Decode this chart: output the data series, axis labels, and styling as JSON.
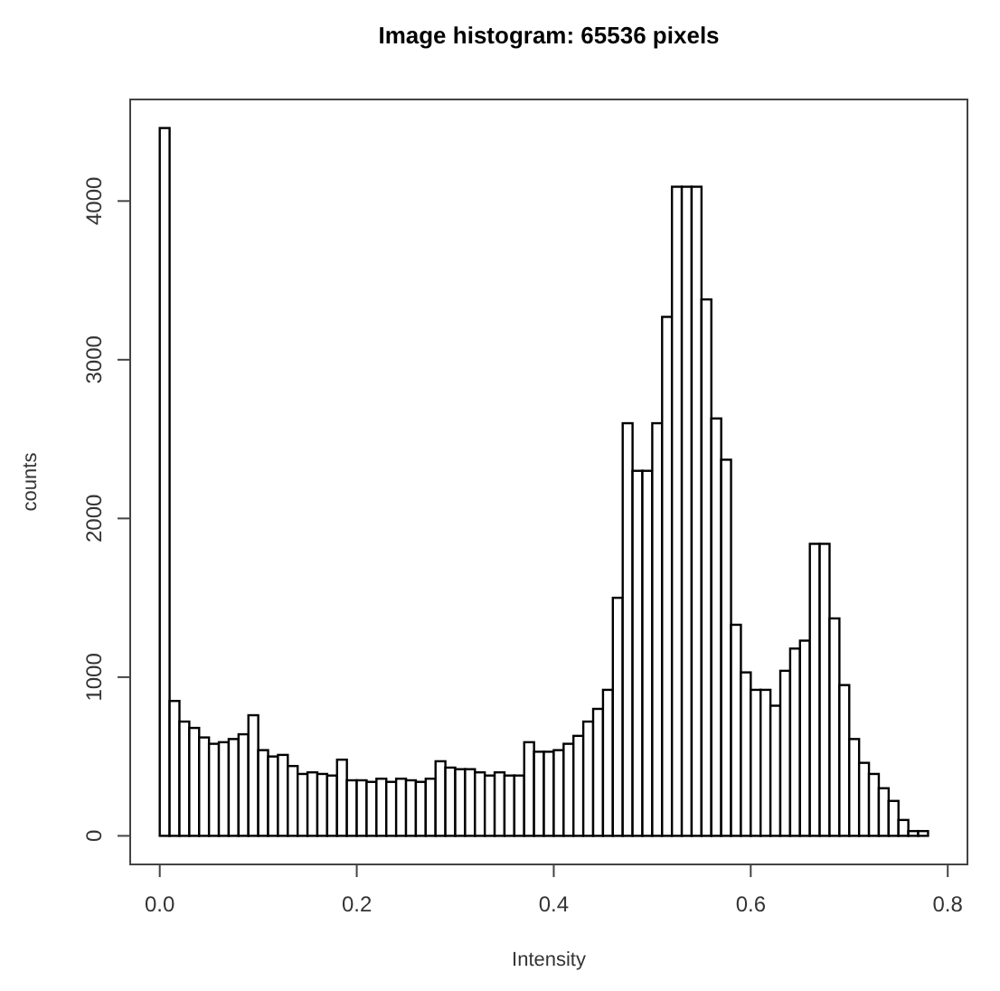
{
  "chart_data": {
    "type": "histogram",
    "title": "Image histogram: 65536 pixels",
    "xlabel": "Intensity",
    "ylabel": "counts",
    "color": "#000000",
    "bins": [
      0,
      0.01,
      0.02,
      0.03,
      0.04,
      0.05,
      0.06,
      0.07,
      0.08,
      0.09,
      0.1,
      0.11,
      0.12,
      0.13,
      0.14,
      0.15,
      0.16,
      0.17,
      0.18,
      0.19,
      0.2,
      0.21,
      0.22,
      0.23,
      0.24,
      0.25,
      0.26,
      0.27,
      0.28,
      0.29,
      0.3,
      0.31,
      0.32,
      0.33,
      0.34,
      0.35,
      0.36,
      0.37,
      0.38,
      0.39,
      0.4,
      0.41,
      0.42,
      0.43,
      0.44,
      0.45,
      0.46,
      0.47,
      0.48,
      0.49,
      0.5,
      0.51,
      0.52,
      0.53,
      0.54,
      0.55,
      0.56,
      0.57,
      0.58,
      0.59,
      0.6,
      0.61,
      0.62,
      0.63,
      0.64,
      0.65,
      0.66,
      0.67,
      0.68,
      0.69,
      0.7,
      0.71,
      0.72,
      0.73,
      0.74,
      0.75,
      0.76,
      0.77,
      0.78
    ],
    "values": [
      4460,
      850,
      720,
      680,
      620,
      580,
      590,
      610,
      640,
      760,
      540,
      500,
      510,
      440,
      390,
      400,
      390,
      380,
      480,
      350,
      350,
      340,
      360,
      340,
      360,
      350,
      340,
      360,
      470,
      430,
      420,
      420,
      400,
      380,
      400,
      380,
      380,
      590,
      530,
      530,
      540,
      580,
      630,
      720,
      800,
      920,
      1500,
      2600,
      2300,
      2300,
      2600,
      3270,
      4090,
      4090,
      4090,
      3380,
      2630,
      2370,
      1330,
      1030,
      920,
      920,
      820,
      1040,
      1180,
      1230,
      1840,
      1840,
      1370,
      950,
      610,
      460,
      390,
      300,
      220,
      100,
      30,
      30
    ],
    "xlim": [
      -0.03,
      0.82
    ],
    "xticks": [
      {
        "value": 0,
        "label": "0.0"
      },
      0.2,
      0.4,
      0.6,
      0.8
    ],
    "ylim": [
      -180,
      4640
    ],
    "yticks": [
      0,
      1000,
      2000,
      3000,
      4000
    ],
    "grid": false
  }
}
